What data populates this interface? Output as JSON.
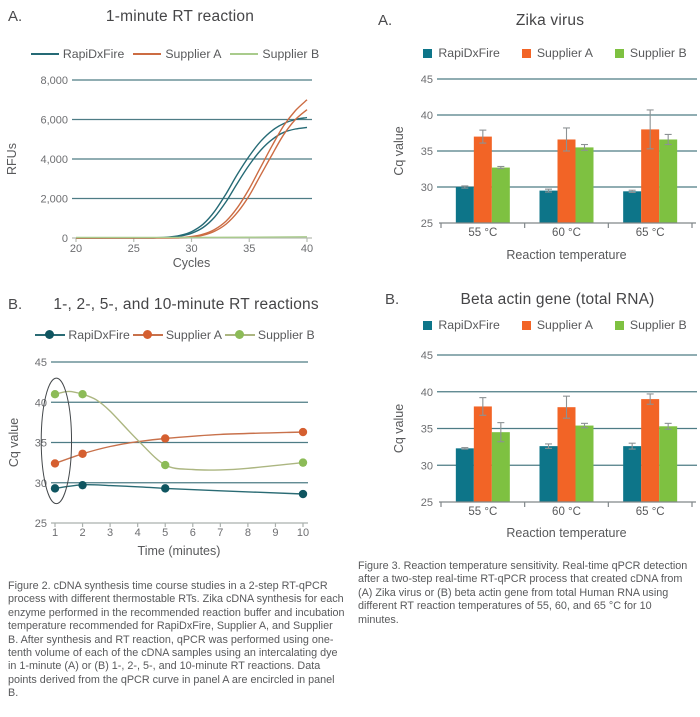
{
  "panel_letters": [
    "A.",
    "B.",
    "A.",
    "B."
  ],
  "captions": {
    "figure2": "Figure 2. cDNA synthesis time course studies in a 2-step RT-qPCR process with different thermostable RTs. Zika cDNA synthesis for each enzyme performed in the recommended reaction buffer and incubation temperature recommended for RapiDxFire, Supplier A, and Supplier B. After synthesis and RT reaction, qPCR was performed using one-tenth volume of each of the cDNA samples using an intercalating dye in 1-minute (A) or (B) 1-, 2-, 5-, and 10-minute RT reactions. Data points derived from the qPCR curve in panel A are encircled in panel B.",
    "figure3": "Figure 3. Reaction temperature sensitivity. Real-time qPCR detection after a two-step real-time RT-qPCR process that created cDNA from (A) Zika virus or (B) beta actin gene from total Human RNA using different RT reaction temperatures of 55, 60, and 65 °C for 10 minutes."
  },
  "colors": {
    "grid": "#4E7C85",
    "error_bar": "#8C9294",
    "ellipse": "#44484B",
    "tick_text": "#6d6e71",
    "axis_text": "#58595b"
  },
  "chart_data": [
    {
      "type": "line",
      "title": "1-minute RT reaction",
      "xlabel": "Cycles",
      "ylabel": "RFUs",
      "xlim": [
        20,
        40
      ],
      "ylim": [
        0,
        8000
      ],
      "xticks": [
        20,
        25,
        30,
        35,
        40
      ],
      "yticks": [
        0,
        2000,
        4000,
        6000,
        8000
      ],
      "ytick_labels": [
        "0",
        "2,000",
        "4,000",
        "6,000",
        "8,000"
      ],
      "grid": true,
      "legend_style": "line",
      "legend_position": "top",
      "series": [
        {
          "name": "RapiDxFire",
          "color": "#256A75",
          "lines": [
            [
              [
                20,
                0
              ],
              [
                26,
                5
              ],
              [
                27,
                15
              ],
              [
                28,
                45
              ],
              [
                29,
                130
              ],
              [
                30,
                320
              ],
              [
                31,
                700
              ],
              [
                32,
                1350
              ],
              [
                33,
                2250
              ],
              [
                34,
                3250
              ],
              [
                35,
                4150
              ],
              [
                36,
                4900
              ],
              [
                37,
                5450
              ],
              [
                38,
                5800
              ],
              [
                39,
                6000
              ],
              [
                40,
                6100
              ]
            ],
            [
              [
                20,
                0
              ],
              [
                26,
                3
              ],
              [
                27,
                10
              ],
              [
                28,
                30
              ],
              [
                29,
                95
              ],
              [
                30,
                240
              ],
              [
                31,
                530
              ],
              [
                32,
                1060
              ],
              [
                33,
                1850
              ],
              [
                34,
                2800
              ],
              [
                35,
                3700
              ],
              [
                36,
                4450
              ],
              [
                37,
                5000
              ],
              [
                38,
                5350
              ],
              [
                39,
                5520
              ],
              [
                40,
                5600
              ]
            ]
          ]
        },
        {
          "name": "Supplier A",
          "color": "#CC6C43",
          "lines": [
            [
              [
                20,
                0
              ],
              [
                28,
                5
              ],
              [
                29,
                20
              ],
              [
                30,
                70
              ],
              [
                31,
                190
              ],
              [
                32,
                430
              ],
              [
                33,
                860
              ],
              [
                34,
                1560
              ],
              [
                35,
                2500
              ],
              [
                36,
                3600
              ],
              [
                37,
                4700
              ],
              [
                38,
                5700
              ],
              [
                39,
                6450
              ],
              [
                40,
                7000
              ]
            ],
            [
              [
                20,
                0
              ],
              [
                28,
                3
              ],
              [
                29,
                14
              ],
              [
                30,
                50
              ],
              [
                31,
                140
              ],
              [
                32,
                340
              ],
              [
                33,
                710
              ],
              [
                34,
                1310
              ],
              [
                35,
                2150
              ],
              [
                36,
                3200
              ],
              [
                37,
                4250
              ],
              [
                38,
                5250
              ],
              [
                39,
                6000
              ],
              [
                40,
                6500
              ]
            ]
          ]
        },
        {
          "name": "Supplier B",
          "color": "#A9CB8C",
          "lines": [
            [
              [
                20,
                25
              ],
              [
                25,
                28
              ],
              [
                30,
                32
              ],
              [
                35,
                42
              ],
              [
                40,
                60
              ]
            ]
          ]
        }
      ]
    },
    {
      "type": "line",
      "title": "1-, 2-, 5-, and 10-minute RT reactions",
      "xlabel": "Time (minutes)",
      "ylabel": "Cq value",
      "xlim": [
        1,
        10
      ],
      "ylim": [
        25,
        45
      ],
      "xticks": [
        1,
        2,
        3,
        4,
        5,
        6,
        7,
        8,
        9,
        10
      ],
      "yticks": [
        25,
        30,
        35,
        40,
        45
      ],
      "grid": true,
      "legend_style": "line-marker",
      "legend_position": "top",
      "series": [
        {
          "name": "RapiDxFire",
          "color": "#2A6B74",
          "marker_color": "#0F5560",
          "points": [
            [
              1,
              29.3
            ],
            [
              2,
              29.7
            ],
            [
              5,
              29.3
            ],
            [
              10,
              28.6
            ]
          ],
          "curve": [
            [
              1,
              29.3
            ],
            [
              2,
              29.75
            ],
            [
              3,
              29.65
            ],
            [
              4,
              29.5
            ],
            [
              5,
              29.3
            ],
            [
              7,
              29.0
            ],
            [
              10,
              28.6
            ]
          ]
        },
        {
          "name": "Supplier A",
          "color": "#C8714B",
          "marker_color": "#D55F30",
          "points": [
            [
              1,
              32.4
            ],
            [
              2,
              33.6
            ],
            [
              5,
              35.5
            ],
            [
              10,
              36.3
            ]
          ],
          "curve": [
            [
              1,
              32.4
            ],
            [
              2,
              33.6
            ],
            [
              3,
              34.5
            ],
            [
              4,
              35.1
            ],
            [
              5,
              35.5
            ],
            [
              7,
              36.0
            ],
            [
              10,
              36.3
            ]
          ]
        },
        {
          "name": "Supplier B",
          "color": "#ACB681",
          "marker_color": "#8CBB57",
          "points": [
            [
              1,
              41.0
            ],
            [
              2,
              41.0
            ],
            [
              5,
              32.2
            ],
            [
              10,
              32.5
            ]
          ],
          "curve": [
            [
              1,
              41.0
            ],
            [
              1.5,
              41.35
            ],
            [
              2,
              41.0
            ],
            [
              2.5,
              40.3
            ],
            [
              3,
              38.9
            ],
            [
              4,
              35.3
            ],
            [
              5,
              32.2
            ],
            [
              6,
              31.65
            ],
            [
              7,
              31.6
            ],
            [
              8,
              31.8
            ],
            [
              10,
              32.5
            ]
          ]
        }
      ],
      "annotation": {
        "shape": "ellipse",
        "label": "1-minute data points from panel A encircled",
        "cx": 1.05,
        "cy": 35.2,
        "rx": 0.55,
        "ry": 7.8
      }
    },
    {
      "type": "bar",
      "title": "Zika virus",
      "xlabel": "Reaction temperature",
      "ylabel": "Cq value",
      "categories": [
        "55 °C",
        "60 °C",
        "65 °C"
      ],
      "ylim": [
        25,
        45
      ],
      "yticks": [
        25,
        30,
        35,
        40,
        45
      ],
      "grid": true,
      "legend_style": "square",
      "legend_position": "top",
      "series": [
        {
          "name": "RapiDxFire",
          "color": "#0D7589",
          "values": [
            30.0,
            29.5,
            29.4
          ],
          "errors": [
            0.15,
            0.2,
            0.15
          ]
        },
        {
          "name": "Supplier A",
          "color": "#F26426",
          "values": [
            37.0,
            36.6,
            38.0
          ],
          "errors": [
            0.9,
            1.6,
            2.7
          ]
        },
        {
          "name": "Supplier B",
          "color": "#7EC141",
          "values": [
            32.7,
            35.5,
            36.6
          ],
          "errors": [
            0.15,
            0.4,
            0.7
          ]
        }
      ]
    },
    {
      "type": "bar",
      "title": "Beta actin gene (total RNA)",
      "xlabel": "Reaction temperature",
      "ylabel": "Cq value",
      "categories": [
        "55 °C",
        "60 °C",
        "65 °C"
      ],
      "ylim": [
        25,
        45
      ],
      "yticks": [
        25,
        30,
        35,
        40,
        45
      ],
      "grid": true,
      "legend_style": "square",
      "legend_position": "top",
      "series": [
        {
          "name": "RapiDxFire",
          "color": "#0D7589",
          "values": [
            32.3,
            32.6,
            32.6
          ],
          "errors": [
            0.1,
            0.3,
            0.4
          ]
        },
        {
          "name": "Supplier A",
          "color": "#F26426",
          "values": [
            38.0,
            37.9,
            39.0
          ],
          "errors": [
            1.2,
            1.5,
            0.7
          ]
        },
        {
          "name": "Supplier B",
          "color": "#7EC141",
          "values": [
            34.5,
            35.4,
            35.3
          ],
          "errors": [
            1.3,
            0.3,
            0.4
          ]
        }
      ]
    }
  ]
}
